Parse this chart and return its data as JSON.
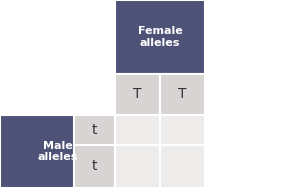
{
  "header_female": "Female\nalleles",
  "header_male": "Male\nalleles",
  "col_alleles": [
    "T",
    "T"
  ],
  "row_alleles": [
    "t",
    "t"
  ],
  "header_bg": "#4f5277",
  "header_text_color": "#ffffff",
  "allele_bg": "#d9d4d4",
  "allele_text_color": "#333333",
  "result_bg": "#eeebeb",
  "fig_width": 3.04,
  "fig_height": 1.88,
  "dpi": 100
}
